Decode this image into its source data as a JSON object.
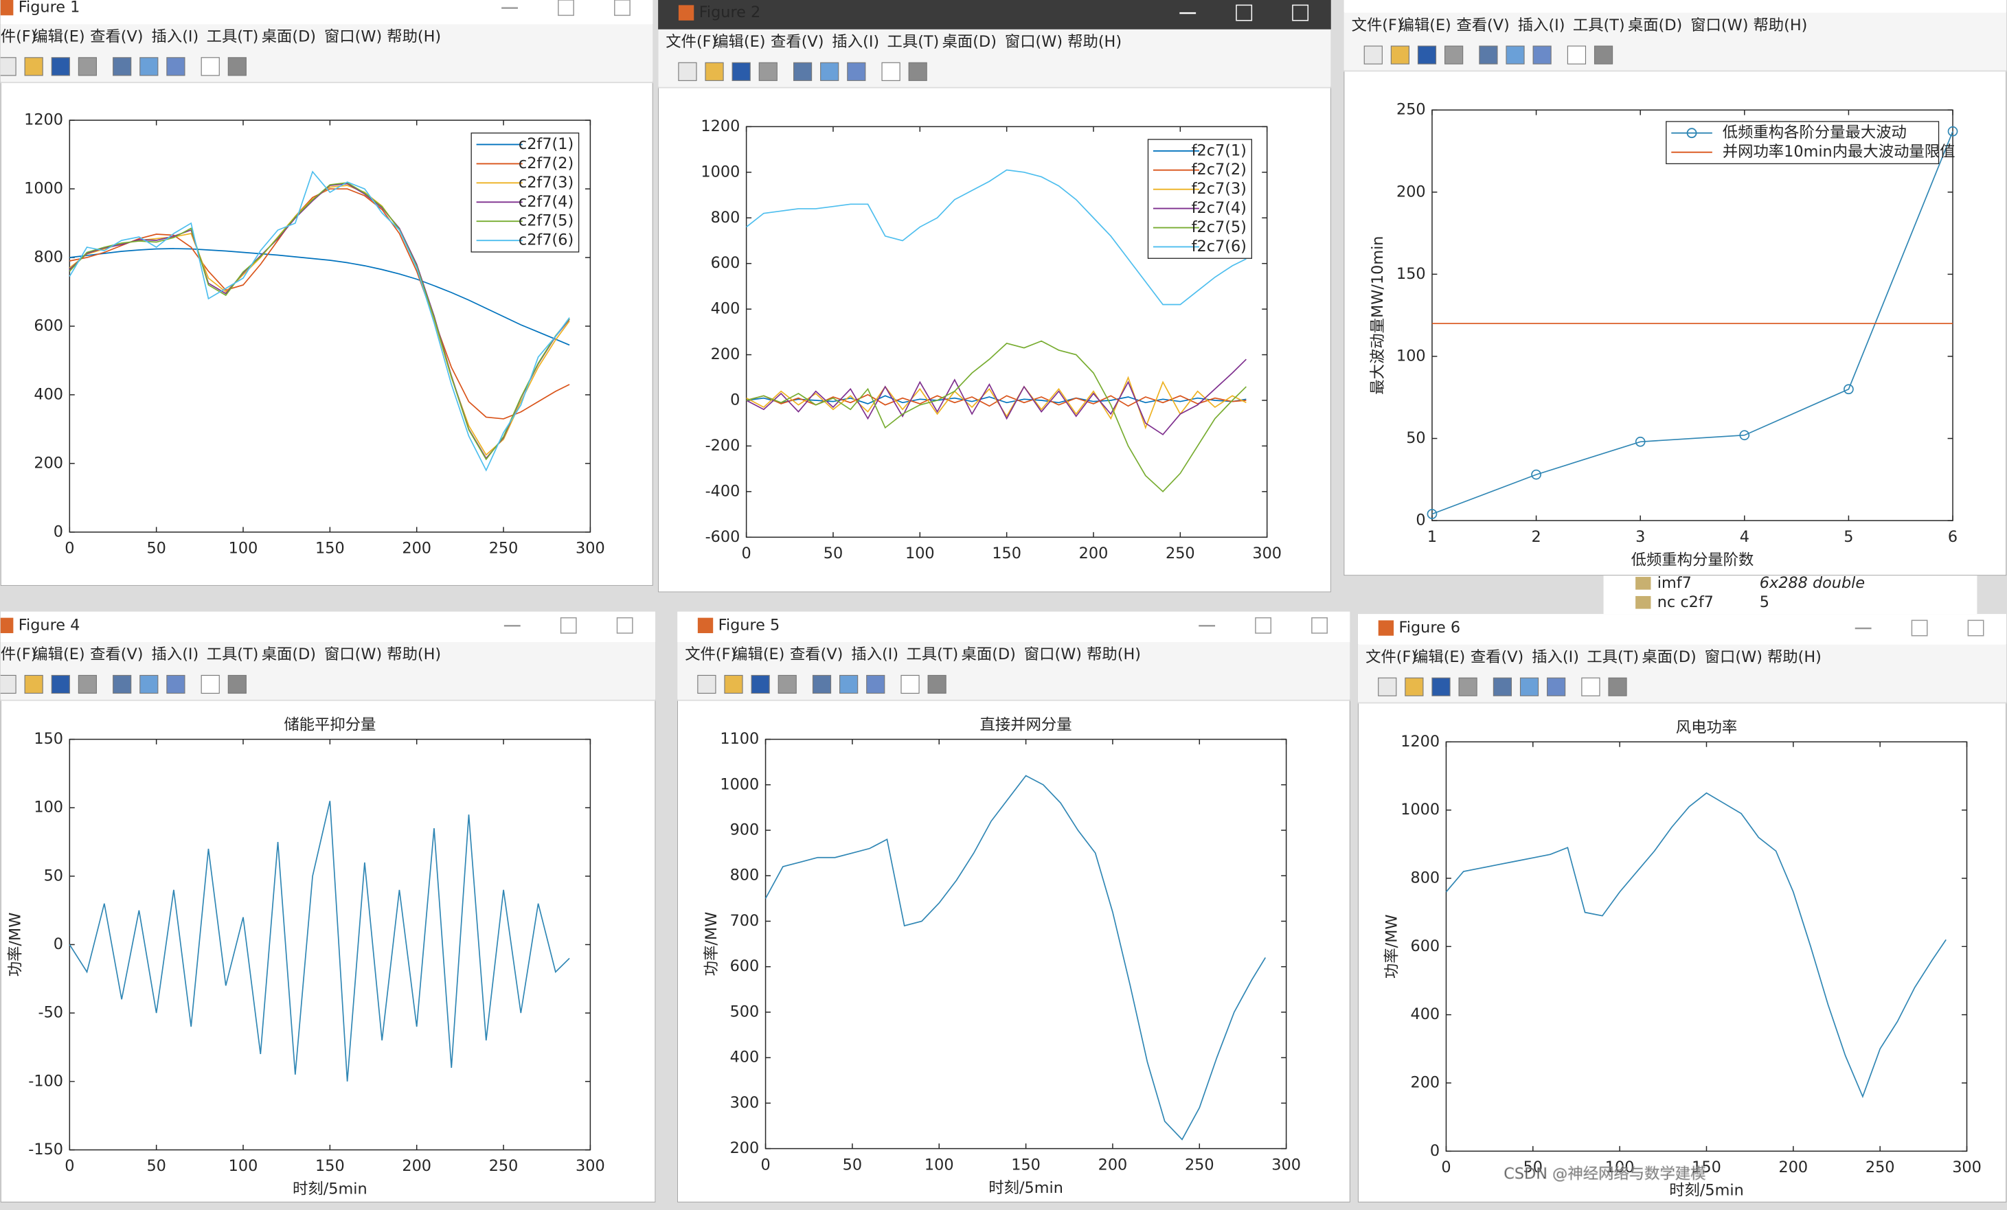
{
  "menu": [
    "文件(F)",
    "编辑(E)",
    "查看(V)",
    "插入(I)",
    "工具(T)",
    "桌面(D)",
    "窗口(W)",
    "帮助(H)"
  ],
  "windows": [
    "Figure 1",
    "Figure 2",
    "Figure 4",
    "Figure 5",
    "Figure 6"
  ],
  "workspace": [
    [
      "imf7",
      "6x288 double"
    ],
    [
      "nc c2f7",
      "5"
    ]
  ],
  "watermark": "CSDN @神经网络与数学建模",
  "chart_data": [
    {
      "type": "line",
      "x": [
        0,
        10,
        20,
        30,
        40,
        50,
        60,
        70,
        80,
        90,
        100,
        110,
        120,
        130,
        140,
        150,
        160,
        170,
        180,
        190,
        200,
        210,
        220,
        230,
        240,
        250,
        260,
        270,
        280,
        288
      ],
      "xlim": [
        0,
        300
      ],
      "xticks": [
        0,
        50,
        100,
        150,
        200,
        250,
        300
      ],
      "ylim": [
        0,
        1200
      ],
      "yticks": [
        0,
        200,
        400,
        600,
        800,
        1000,
        1200
      ],
      "legend": "upper right",
      "series": [
        {
          "name": "c2f7(1)",
          "color": "#0072bd",
          "values": [
            800,
            806,
            812,
            818,
            822,
            825,
            826,
            825,
            822,
            819,
            815,
            811,
            807,
            802,
            797,
            792,
            785,
            776,
            765,
            752,
            737,
            718,
            698,
            676,
            652,
            628,
            604,
            583,
            562,
            545
          ]
        },
        {
          "name": "c2f7(2)",
          "color": "#d95319",
          "values": [
            790,
            800,
            815,
            835,
            855,
            868,
            865,
            830,
            760,
            705,
            720,
            780,
            850,
            920,
            975,
            1000,
            1000,
            980,
            940,
            870,
            760,
            620,
            480,
            380,
            335,
            330,
            350,
            380,
            410,
            430
          ]
        },
        {
          "name": "c2f7(3)",
          "color": "#edb120",
          "values": [
            770,
            810,
            825,
            840,
            850,
            855,
            860,
            870,
            740,
            700,
            750,
            800,
            860,
            920,
            970,
            1005,
            1010,
            990,
            950,
            880,
            770,
            620,
            450,
            310,
            225,
            270,
            380,
            480,
            560,
            615
          ]
        },
        {
          "name": "c2f7(4)",
          "color": "#7e2f8e",
          "values": [
            765,
            812,
            828,
            838,
            852,
            850,
            862,
            880,
            725,
            695,
            755,
            805,
            855,
            915,
            965,
            1010,
            1015,
            985,
            945,
            885,
            780,
            630,
            455,
            300,
            215,
            275,
            390,
            490,
            570,
            620
          ]
        },
        {
          "name": "c2f7(5)",
          "color": "#77ac30",
          "values": [
            760,
            815,
            830,
            842,
            848,
            845,
            858,
            885,
            720,
            690,
            758,
            802,
            858,
            918,
            968,
            1012,
            1018,
            988,
            948,
            882,
            775,
            625,
            452,
            298,
            212,
            278,
            392,
            492,
            572,
            622
          ]
        },
        {
          "name": "c2f7(6)",
          "color": "#4dbeee",
          "values": [
            745,
            830,
            820,
            850,
            860,
            830,
            870,
            900,
            680,
            710,
            740,
            820,
            880,
            900,
            1050,
            990,
            1020,
            1000,
            930,
            880,
            770,
            610,
            430,
            280,
            180,
            290,
            370,
            510,
            570,
            625
          ]
        }
      ]
    },
    {
      "type": "line",
      "x": [
        0,
        10,
        20,
        30,
        40,
        50,
        60,
        70,
        80,
        90,
        100,
        110,
        120,
        130,
        140,
        150,
        160,
        170,
        180,
        190,
        200,
        210,
        220,
        230,
        240,
        250,
        260,
        270,
        280,
        288
      ],
      "xlim": [
        0,
        300
      ],
      "xticks": [
        0,
        50,
        100,
        150,
        200,
        250,
        300
      ],
      "ylim": [
        -600,
        1200
      ],
      "yticks": [
        -600,
        -400,
        -200,
        0,
        200,
        400,
        600,
        800,
        1000,
        1200
      ],
      "legend": "upper right",
      "series": [
        {
          "name": "f2c7(1)",
          "color": "#0072bd",
          "values": [
            0,
            10,
            -10,
            5,
            0,
            -5,
            10,
            -15,
            20,
            -10,
            5,
            0,
            10,
            -5,
            15,
            -10,
            5,
            0,
            -10,
            10,
            -5,
            0,
            15,
            -10,
            5,
            -5,
            10,
            0,
            -5,
            5
          ]
        },
        {
          "name": "f2c7(2)",
          "color": "#d95319",
          "values": [
            0,
            20,
            -15,
            10,
            -20,
            15,
            -10,
            25,
            -20,
            10,
            -15,
            20,
            -10,
            15,
            -25,
            20,
            -10,
            15,
            -20,
            10,
            -15,
            20,
            -25,
            15,
            -10,
            20,
            -15,
            10,
            -5,
            0
          ]
        },
        {
          "name": "f2c7(3)",
          "color": "#edb120",
          "values": [
            10,
            -30,
            40,
            -20,
            30,
            -40,
            20,
            -50,
            60,
            -40,
            50,
            -60,
            40,
            -30,
            50,
            -70,
            60,
            -40,
            50,
            -60,
            40,
            -80,
            100,
            -120,
            80,
            -60,
            40,
            -30,
            20,
            -10
          ]
        },
        {
          "name": "f2c7(4)",
          "color": "#7e2f8e",
          "values": [
            0,
            -40,
            30,
            -50,
            40,
            -30,
            50,
            -80,
            60,
            -70,
            80,
            -50,
            90,
            -60,
            70,
            -80,
            60,
            -50,
            40,
            -70,
            30,
            -60,
            80,
            -100,
            -150,
            -60,
            -20,
            50,
            120,
            180
          ]
        },
        {
          "name": "f2c7(5)",
          "color": "#77ac30",
          "values": [
            0,
            20,
            -10,
            30,
            -20,
            10,
            -40,
            50,
            -120,
            -60,
            -20,
            0,
            40,
            120,
            180,
            250,
            230,
            260,
            220,
            200,
            120,
            -20,
            -200,
            -330,
            -400,
            -320,
            -200,
            -80,
            0,
            60
          ]
        },
        {
          "name": "f2c7(6)",
          "color": "#4dbeee",
          "values": [
            760,
            820,
            830,
            840,
            840,
            850,
            860,
            860,
            720,
            700,
            760,
            800,
            880,
            920,
            960,
            1010,
            1000,
            980,
            940,
            880,
            800,
            720,
            620,
            520,
            420,
            420,
            480,
            540,
            590,
            620
          ]
        }
      ]
    },
    {
      "type": "line",
      "x": [
        1,
        2,
        3,
        4,
        5,
        6
      ],
      "xlim": [
        1,
        6
      ],
      "xticks": [
        1,
        2,
        3,
        4,
        5,
        6
      ],
      "ylim": [
        0,
        250
      ],
      "yticks": [
        0,
        50,
        100,
        150,
        200,
        250
      ],
      "xlabel": "低频重构分量阶数",
      "ylabel": "最大波动量MW/10min",
      "legend": "upper right",
      "series": [
        {
          "name": "低频重构各阶分量最大波动",
          "color": "#2f86b4",
          "marker": "o",
          "values": [
            4,
            28,
            48,
            52,
            80,
            237
          ]
        },
        {
          "name": "并网功率10min内最大波动量限值",
          "color": "#d95319",
          "values": [
            120,
            120,
            120,
            120,
            120,
            120
          ]
        }
      ]
    },
    {
      "type": "line",
      "title": "储能平抑分量",
      "xlabel": "时刻/5min",
      "ylabel": "功率/MW",
      "x": [
        0,
        10,
        20,
        30,
        40,
        50,
        60,
        70,
        80,
        90,
        100,
        110,
        120,
        130,
        140,
        150,
        160,
        170,
        180,
        190,
        200,
        210,
        220,
        230,
        240,
        250,
        260,
        270,
        280,
        288
      ],
      "xlim": [
        0,
        300
      ],
      "xticks": [
        0,
        50,
        100,
        150,
        200,
        250,
        300
      ],
      "ylim": [
        -150,
        150
      ],
      "yticks": [
        -150,
        -100,
        -50,
        0,
        50,
        100,
        150
      ],
      "color": "#2f86b4",
      "values": [
        0,
        -20,
        30,
        -40,
        25,
        -50,
        40,
        -60,
        70,
        -30,
        20,
        -80,
        75,
        -95,
        50,
        105,
        -100,
        60,
        -70,
        40,
        -60,
        85,
        -90,
        95,
        -70,
        40,
        -50,
        30,
        -20,
        -10
      ]
    },
    {
      "type": "line",
      "title": "直接并网分量",
      "xlabel": "时刻/5min",
      "ylabel": "功率/MW",
      "x": [
        0,
        10,
        20,
        30,
        40,
        50,
        60,
        70,
        80,
        90,
        100,
        110,
        120,
        130,
        140,
        150,
        160,
        170,
        180,
        190,
        200,
        210,
        220,
        230,
        240,
        250,
        260,
        270,
        280,
        288
      ],
      "xlim": [
        0,
        300
      ],
      "xticks": [
        0,
        50,
        100,
        150,
        200,
        250,
        300
      ],
      "ylim": [
        200,
        1100
      ],
      "yticks": [
        200,
        300,
        400,
        500,
        600,
        700,
        800,
        900,
        1000,
        1100
      ],
      "color": "#2f86b4",
      "values": [
        750,
        820,
        830,
        840,
        840,
        850,
        860,
        880,
        690,
        700,
        740,
        790,
        850,
        920,
        970,
        1020,
        1000,
        960,
        900,
        850,
        720,
        560,
        390,
        260,
        220,
        290,
        400,
        500,
        570,
        620
      ]
    },
    {
      "type": "line",
      "title": "风电功率",
      "xlabel": "时刻/5min",
      "ylabel": "功率/MW",
      "x": [
        0,
        10,
        20,
        30,
        40,
        50,
        60,
        70,
        80,
        90,
        100,
        110,
        120,
        130,
        140,
        150,
        160,
        170,
        180,
        190,
        200,
        210,
        220,
        230,
        240,
        250,
        260,
        270,
        280,
        288
      ],
      "xlim": [
        0,
        300
      ],
      "xticks": [
        0,
        50,
        100,
        150,
        200,
        250,
        300
      ],
      "ylim": [
        0,
        1200
      ],
      "yticks": [
        0,
        200,
        400,
        600,
        800,
        1000,
        1200
      ],
      "color": "#2f86b4",
      "values": [
        760,
        820,
        830,
        840,
        850,
        860,
        870,
        890,
        700,
        690,
        760,
        820,
        880,
        950,
        1010,
        1050,
        1020,
        990,
        920,
        880,
        760,
        600,
        430,
        280,
        160,
        300,
        380,
        480,
        560,
        620
      ]
    }
  ]
}
